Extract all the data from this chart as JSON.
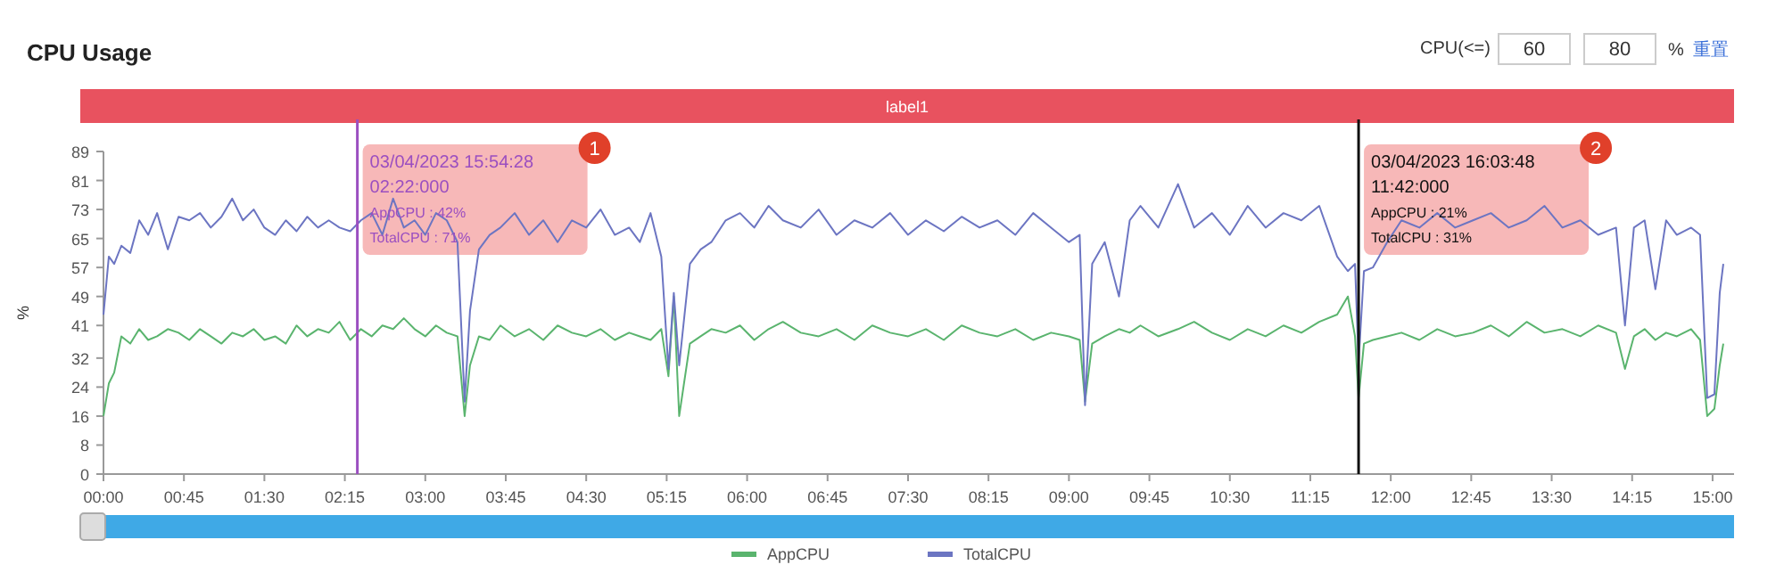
{
  "chart_data": {
    "type": "line",
    "title": "CPU Usage",
    "ylabel": "%",
    "x": [
      0,
      3,
      6,
      10,
      15,
      20,
      25,
      30,
      36,
      42,
      48,
      54,
      60,
      66,
      72,
      78,
      84,
      90,
      96,
      102,
      108,
      114,
      120,
      126,
      132,
      138,
      144,
      150,
      156,
      162,
      168,
      174,
      180,
      186,
      192,
      198,
      202,
      205,
      210,
      216,
      222,
      230,
      238,
      246,
      254,
      262,
      270,
      278,
      286,
      294,
      300,
      306,
      312,
      316,
      319,
      322,
      328,
      334,
      340,
      348,
      356,
      364,
      372,
      380,
      390,
      400,
      410,
      420,
      430,
      440,
      450,
      460,
      470,
      480,
      490,
      500,
      510,
      520,
      530,
      540,
      546,
      549,
      553,
      560,
      568,
      574,
      580,
      590,
      601,
      610,
      620,
      630,
      640,
      650,
      660,
      670,
      680,
      690,
      696,
      700,
      702,
      705,
      710,
      718,
      726,
      736,
      746,
      756,
      766,
      776,
      786,
      796,
      806,
      816,
      826,
      836,
      846,
      851,
      856,
      862,
      868,
      874,
      880,
      888,
      893,
      897,
      901,
      904,
      906
    ],
    "series": [
      {
        "name": "AppCPU",
        "color": "#5ab46e",
        "values": [
          16,
          25,
          28,
          38,
          36,
          40,
          37,
          38,
          40,
          39,
          37,
          40,
          38,
          36,
          39,
          38,
          40,
          37,
          38,
          36,
          41,
          38,
          40,
          39,
          42,
          37,
          40,
          38,
          41,
          40,
          43,
          40,
          38,
          41,
          39,
          38,
          16,
          30,
          38,
          37,
          41,
          38,
          40,
          37,
          41,
          39,
          38,
          40,
          37,
          39,
          38,
          37,
          40,
          27,
          49,
          16,
          36,
          38,
          40,
          39,
          41,
          37,
          40,
          42,
          39,
          38,
          40,
          37,
          41,
          39,
          38,
          40,
          37,
          41,
          39,
          38,
          40,
          37,
          39,
          38,
          37,
          20,
          36,
          38,
          40,
          39,
          41,
          38,
          40,
          42,
          39,
          37,
          40,
          38,
          41,
          39,
          42,
          44,
          49,
          38,
          21,
          36,
          37,
          38,
          39,
          37,
          40,
          38,
          39,
          41,
          38,
          42,
          39,
          40,
          38,
          41,
          39,
          29,
          38,
          40,
          37,
          39,
          38,
          40,
          37,
          16,
          18,
          30,
          36
        ]
      },
      {
        "name": "TotalCPU",
        "color": "#6c75c2",
        "values": [
          44,
          60,
          58,
          63,
          61,
          70,
          66,
          72,
          62,
          71,
          70,
          72,
          68,
          71,
          76,
          70,
          73,
          68,
          66,
          70,
          67,
          71,
          68,
          70,
          68,
          67,
          70,
          72,
          66,
          76,
          68,
          70,
          66,
          72,
          70,
          64,
          20,
          45,
          62,
          66,
          68,
          72,
          66,
          70,
          64,
          70,
          68,
          73,
          66,
          68,
          64,
          72,
          60,
          29,
          50,
          30,
          58,
          62,
          64,
          70,
          72,
          68,
          74,
          70,
          68,
          73,
          66,
          70,
          68,
          72,
          66,
          70,
          67,
          71,
          68,
          70,
          66,
          72,
          68,
          64,
          66,
          19,
          58,
          64,
          49,
          70,
          74,
          68,
          80,
          68,
          72,
          66,
          74,
          68,
          72,
          70,
          74,
          60,
          56,
          58,
          31,
          56,
          57,
          64,
          70,
          68,
          72,
          68,
          70,
          72,
          68,
          70,
          74,
          68,
          70,
          66,
          68,
          41,
          68,
          70,
          51,
          70,
          66,
          68,
          66,
          21,
          22,
          50,
          58
        ]
      }
    ],
    "xlim": [
      0,
      912
    ],
    "xticks": [
      {
        "value": 0,
        "label": "00:00"
      },
      {
        "value": 45,
        "label": "00:45"
      },
      {
        "value": 90,
        "label": "01:30"
      },
      {
        "value": 135,
        "label": "02:15"
      },
      {
        "value": 180,
        "label": "03:00"
      },
      {
        "value": 225,
        "label": "03:45"
      },
      {
        "value": 270,
        "label": "04:30"
      },
      {
        "value": 315,
        "label": "05:15"
      },
      {
        "value": 360,
        "label": "06:00"
      },
      {
        "value": 405,
        "label": "06:45"
      },
      {
        "value": 450,
        "label": "07:30"
      },
      {
        "value": 495,
        "label": "08:15"
      },
      {
        "value": 540,
        "label": "09:00"
      },
      {
        "value": 585,
        "label": "09:45"
      },
      {
        "value": 630,
        "label": "10:30"
      },
      {
        "value": 675,
        "label": "11:15"
      },
      {
        "value": 720,
        "label": "12:00"
      },
      {
        "value": 765,
        "label": "12:45"
      },
      {
        "value": 810,
        "label": "13:30"
      },
      {
        "value": 855,
        "label": "14:15"
      },
      {
        "value": 900,
        "label": "15:00"
      }
    ],
    "ylim": [
      0,
      89
    ],
    "yticks": [
      0,
      8,
      16,
      24,
      32,
      41,
      49,
      57,
      65,
      73,
      81,
      89
    ],
    "ref_lines": [
      {
        "axis": "x",
        "value": 142,
        "color": "#9b4fc0"
      },
      {
        "axis": "x",
        "value": 702,
        "color": "#111111"
      }
    ],
    "annotations": [
      {
        "text": "03/04/2023 15:54:28\n02:22:000\nAppCPU : 42%\nTotalCPU : 71%",
        "x": 142
      },
      {
        "text": "03/04/2023 16:03:48\n11:42:000\nAppCPU : 21%\nTotalCPU : 31%",
        "x": 702
      },
      "CPU(<=)",
      "60",
      "80",
      "%",
      "重置",
      "label1",
      "1",
      "2"
    ],
    "legend": "bottom"
  }
}
